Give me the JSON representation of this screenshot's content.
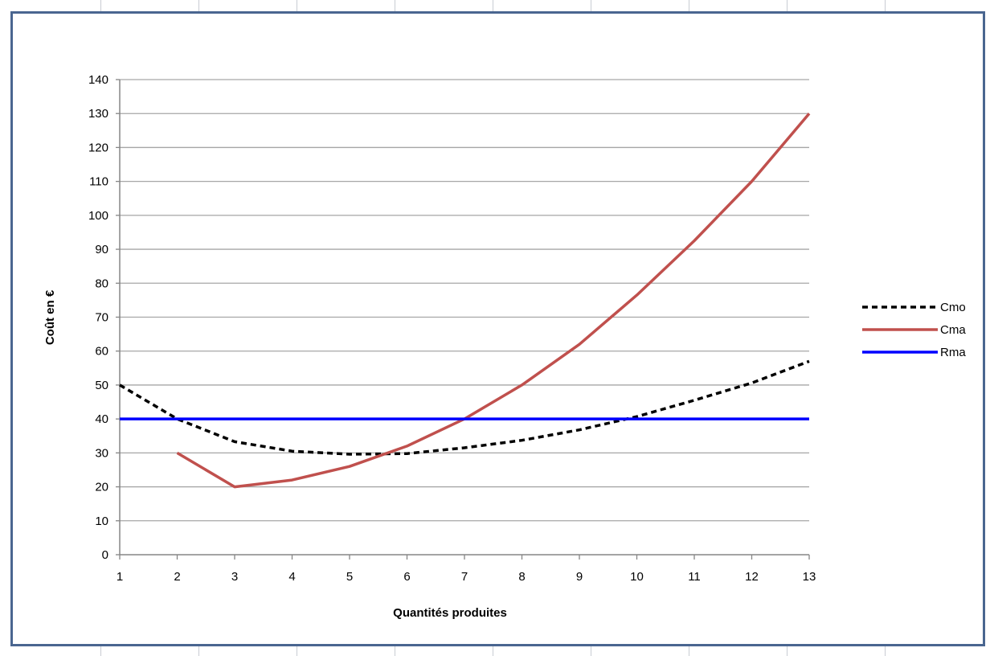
{
  "chart_data": {
    "type": "line",
    "title": "",
    "xlabel": "Quantités produites",
    "ylabel": "Coût en €",
    "x": [
      1,
      2,
      3,
      4,
      5,
      6,
      7,
      8,
      9,
      10,
      11,
      12,
      13
    ],
    "ylim": [
      0,
      140
    ],
    "yticks": [
      0,
      10,
      20,
      30,
      40,
      50,
      60,
      70,
      80,
      90,
      100,
      110,
      120,
      130,
      140
    ],
    "grid": true,
    "legend_position": "right",
    "series": [
      {
        "name": "Cmo",
        "color": "#000000",
        "dash": "dotted",
        "values": [
          50,
          40,
          33.3,
          30.5,
          29.6,
          29.8,
          31.5,
          33.7,
          36.8,
          40.7,
          45.5,
          50.6,
          57
        ]
      },
      {
        "name": "Cma",
        "color": "#c0504d",
        "dash": "solid",
        "values": [
          null,
          30,
          20,
          22,
          26,
          32,
          40,
          50,
          62,
          76.5,
          92.5,
          110,
          130
        ]
      },
      {
        "name": "Rma",
        "color": "#0000ff",
        "dash": "solid",
        "values": [
          40,
          40,
          40,
          40,
          40,
          40,
          40,
          40,
          40,
          40,
          40,
          40,
          40
        ]
      }
    ]
  }
}
